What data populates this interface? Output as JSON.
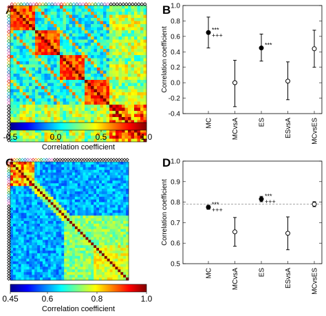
{
  "panels": {
    "A": {
      "letter": "A"
    },
    "B": {
      "letter": "B"
    },
    "C": {
      "letter": "C"
    },
    "D": {
      "letter": "D"
    }
  },
  "colorbar_A": {
    "label": "Correlation coefficient",
    "ticks": [
      "-0.5",
      "0.0",
      "0.5",
      "1.0"
    ],
    "tick_values": [
      -0.5,
      0.0,
      0.5,
      1.0
    ],
    "range": [
      -0.5,
      1.0
    ]
  },
  "colorbar_C": {
    "label": "Correlation coefficient",
    "ticks": [
      "0.45",
      "0.6",
      "0.8",
      "1.0"
    ],
    "tick_values": [
      0.45,
      0.6,
      0.8,
      1.0
    ],
    "range": [
      0.45,
      1.0
    ]
  },
  "chart_data": [
    {
      "panel": "A",
      "type": "heatmap",
      "size": 44,
      "color_range": [
        -0.5,
        1.0
      ],
      "blocks": {
        "first_group_blocks": 4,
        "first_group_block_size": 8,
        "second_group_size": 12
      },
      "colormap": "jet"
    },
    {
      "panel": "B",
      "type": "scatter",
      "ylabel": "Correlation coefficient",
      "categories": [
        "MC",
        "MCvsA",
        "ES",
        "ESvsA",
        "MCvsES"
      ],
      "ylim": [
        -0.4,
        1.0
      ],
      "yticks": [
        "-0.4",
        "-0.2",
        "0.0",
        "0.2",
        "0.4",
        "0.6",
        "0.8",
        "1.0"
      ],
      "ytick_values": [
        -0.4,
        -0.2,
        0.0,
        0.2,
        0.4,
        0.6,
        0.8,
        1.0
      ],
      "points": [
        {
          "category": "MC",
          "value": 0.65,
          "low": 0.45,
          "high": 0.85,
          "filled": true,
          "sig1": "***",
          "sig2": "+++"
        },
        {
          "category": "MCvsA",
          "value": 0.0,
          "low": -0.31,
          "high": 0.29,
          "filled": false,
          "sig1": "",
          "sig2": ""
        },
        {
          "category": "ES",
          "value": 0.45,
          "low": 0.28,
          "high": 0.63,
          "filled": true,
          "sig1": "***",
          "sig2": ""
        },
        {
          "category": "ESvsA",
          "value": 0.02,
          "low": -0.22,
          "high": 0.27,
          "filled": false,
          "sig1": "",
          "sig2": ""
        },
        {
          "category": "MCvsES",
          "value": 0.44,
          "low": 0.2,
          "high": 0.68,
          "filled": false,
          "sig1": "",
          "sig2": ""
        }
      ]
    },
    {
      "panel": "C",
      "type": "heatmap",
      "size": 44,
      "color_range": [
        0.45,
        1.0
      ],
      "colormap": "jet"
    },
    {
      "panel": "D",
      "type": "scatter",
      "ylabel": "Correlation coefficient",
      "categories": [
        "MC",
        "MCvsA",
        "ES",
        "ESvsA",
        "MCvsES"
      ],
      "ylim": [
        0.5,
        1.0
      ],
      "yticks": [
        "0.5",
        "0.6",
        "0.7",
        "0.8",
        "0.9",
        "1.0"
      ],
      "ytick_values": [
        0.5,
        0.6,
        0.7,
        0.8,
        0.9,
        1.0
      ],
      "reference_line": 0.79,
      "points": [
        {
          "category": "MC",
          "value": 0.775,
          "low": 0.765,
          "high": 0.785,
          "filled": true,
          "sig1": "***",
          "sig2": "+++"
        },
        {
          "category": "MCvsA",
          "value": 0.655,
          "low": 0.585,
          "high": 0.725,
          "filled": false,
          "sig1": "",
          "sig2": ""
        },
        {
          "category": "ES",
          "value": 0.815,
          "low": 0.802,
          "high": 0.828,
          "filled": true,
          "sig1": "***",
          "sig2": "+++"
        },
        {
          "category": "ESvsA",
          "value": 0.648,
          "low": 0.568,
          "high": 0.728,
          "filled": false,
          "sig1": "",
          "sig2": ""
        },
        {
          "category": "MCvsES",
          "value": 0.79,
          "low": 0.778,
          "high": 0.802,
          "filled": false,
          "sig1": "",
          "sig2": ""
        }
      ]
    }
  ]
}
